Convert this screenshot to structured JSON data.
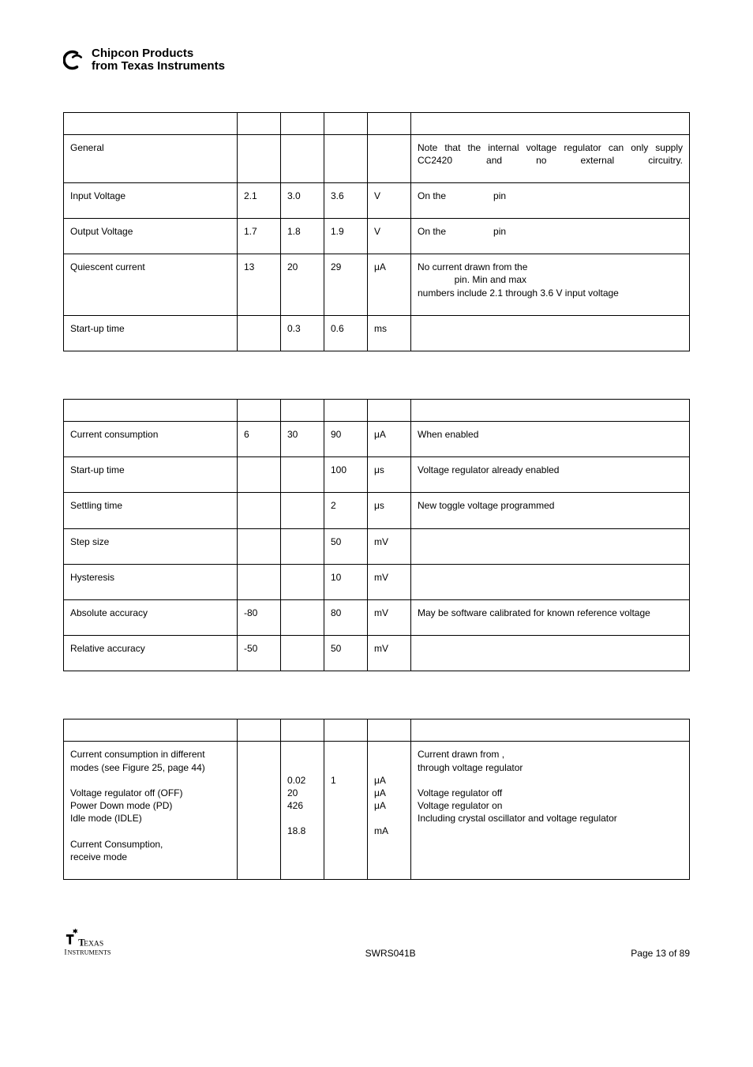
{
  "header": {
    "line1": "Chipcon Products",
    "line2": "from Texas Instruments"
  },
  "table1": {
    "rows": [
      {
        "param": "General",
        "min": "",
        "typ": "",
        "max": "",
        "unit": "",
        "cond": "Note that the internal voltage regulator can only supply CC2420 and no external circuitry.",
        "cond_justify": true
      },
      {
        "param": "Input Voltage",
        "min": "2.1",
        "typ": "3.0",
        "max": "3.6",
        "unit": "V",
        "cond_parts": [
          "On the",
          "pin"
        ]
      },
      {
        "param": "Output Voltage",
        "min": "1.7",
        "typ": "1.8",
        "max": "1.9",
        "unit": "V",
        "cond_parts": [
          "On the",
          "pin"
        ]
      },
      {
        "param": "Quiescent current",
        "min": "13",
        "typ": "20",
        "max": "29",
        "unit": "μA",
        "cond_lines": [
          "No current drawn from the",
          "              pin. Min and max",
          "numbers include 2.1 through 3.6 V input voltage"
        ]
      },
      {
        "param": "Start-up time",
        "min": "",
        "typ": "0.3",
        "max": "0.6",
        "unit": "ms",
        "cond": ""
      }
    ]
  },
  "table2": {
    "rows": [
      {
        "param": "Current consumption",
        "min": "6",
        "typ": "30",
        "max": "90",
        "unit": "μA",
        "cond": "When enabled"
      },
      {
        "param": "Start-up time",
        "min": "",
        "typ": "",
        "max": "100",
        "unit": "μs",
        "cond": "Voltage regulator already enabled"
      },
      {
        "param": "Settling time",
        "min": "",
        "typ": "",
        "max": "2",
        "unit": "μs",
        "cond": "New toggle voltage programmed"
      },
      {
        "param": "Step size",
        "min": "",
        "typ": "",
        "max": "50",
        "unit": "mV",
        "cond": ""
      },
      {
        "param": "Hysteresis",
        "min": "",
        "typ": "",
        "max": "10",
        "unit": "mV",
        "cond": ""
      },
      {
        "param": "Absolute accuracy",
        "min": "-80",
        "typ": "",
        "max": "80",
        "unit": "mV",
        "cond": "May be software calibrated for known reference voltage"
      },
      {
        "param": "Relative accuracy",
        "min": "-50",
        "typ": "",
        "max": "50",
        "unit": "mV",
        "cond": ""
      }
    ]
  },
  "table3": {
    "row": {
      "param_lines": [
        "Current consumption in different modes (see Figure 25, page 44)",
        "",
        "Voltage regulator off  (OFF)",
        "Power Down mode (PD)",
        "Idle mode (IDLE)",
        "",
        "Current Consumption,",
        "receive mode"
      ],
      "typ_lines": [
        "",
        "",
        "0.02",
        "20",
        "426",
        "",
        "18.8"
      ],
      "max_lines": [
        "",
        "",
        "1"
      ],
      "unit_lines": [
        "",
        "",
        "μA",
        "μA",
        "μA",
        "",
        "mA"
      ],
      "cond_lines": [
        "Current drawn from               ,",
        "through voltage regulator",
        "",
        "Voltage regulator off",
        "Voltage regulator on",
        "Including crystal oscillator and voltage regulator"
      ]
    }
  },
  "footer": {
    "doc": "SWRS041B",
    "page": "Page 13 of 89"
  },
  "colors": {
    "text": "#000000",
    "border": "#000000",
    "background": "#ffffff"
  }
}
